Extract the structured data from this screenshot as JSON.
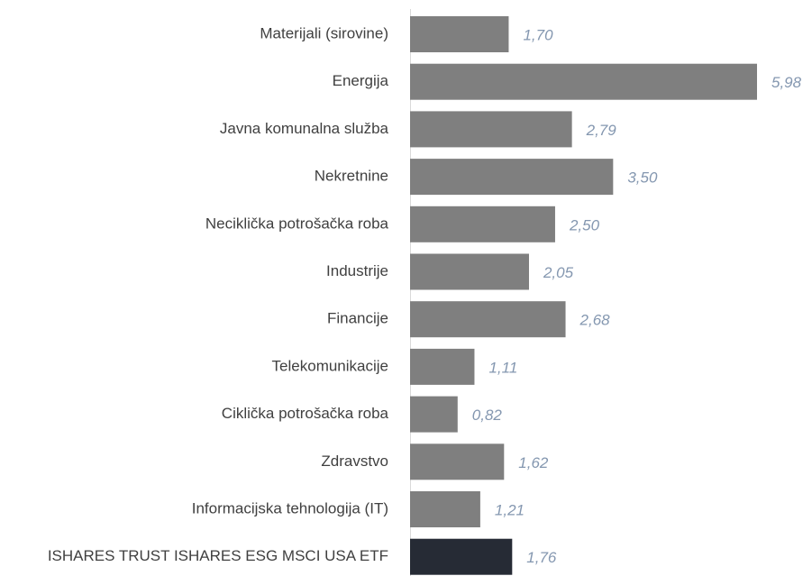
{
  "chart_data": {
    "type": "bar",
    "orientation": "horizontal",
    "categories": [
      "Materijali (sirovine)",
      "Energija",
      "Javna komunalna služba",
      "Nekretnine",
      "Neciklička potrošačka roba",
      "Industrije",
      "Financije",
      "Telekomunikacije",
      "Ciklička potrošačka roba",
      "Zdravstvo",
      "Informacijska tehnologija (IT)",
      "ISHARES TRUST ISHARES ESG MSCI USA ETF"
    ],
    "values": [
      1.7,
      5.98,
      2.79,
      3.5,
      2.5,
      2.05,
      2.68,
      1.11,
      0.82,
      1.62,
      1.21,
      1.76
    ],
    "value_labels": [
      "1,70",
      "5,98",
      "2,79",
      "3,50",
      "2,50",
      "2,05",
      "2,68",
      "1,11",
      "0,82",
      "1,62",
      "1,21",
      "1,76"
    ],
    "colors": [
      "#7f7f7f",
      "#7f7f7f",
      "#7f7f7f",
      "#7f7f7f",
      "#7f7f7f",
      "#7f7f7f",
      "#7f7f7f",
      "#7f7f7f",
      "#7f7f7f",
      "#7f7f7f",
      "#7f7f7f",
      "#262b35"
    ],
    "value_label_color": "#8497b0"
  }
}
